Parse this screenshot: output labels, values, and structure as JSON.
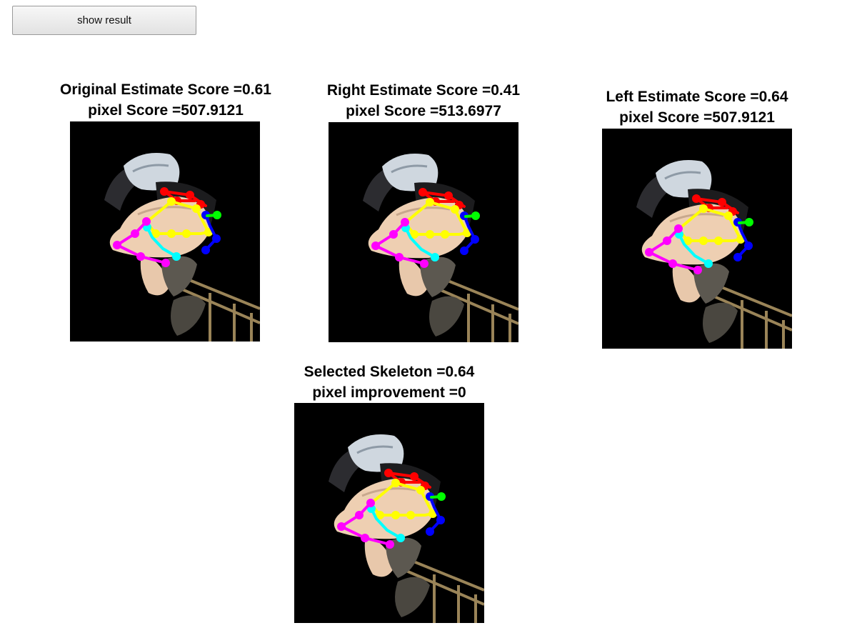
{
  "toolbar": {
    "show_result_label": "show result"
  },
  "panels": [
    {
      "title_line1": "Original Estimate Score =0.61",
      "title_line2": "pixel Score =507.9121"
    },
    {
      "title_line1": "Right Estimate Score =0.41",
      "title_line2": "pixel Score =513.6977"
    },
    {
      "title_line1": "Left Estimate Score =0.64",
      "title_line2": "pixel Score =507.9121"
    },
    {
      "title_line1": "Selected Skeleton =0.64",
      "title_line2": "pixel improvement =0"
    }
  ],
  "skeleton_colors": {
    "head": "#ff0000",
    "torso": "#ffff00",
    "arm_right": "#0000ff",
    "arm_left": "#00ffff",
    "leg": "#ff00ff",
    "hand": "#00ff00"
  },
  "background_color": "#000000"
}
